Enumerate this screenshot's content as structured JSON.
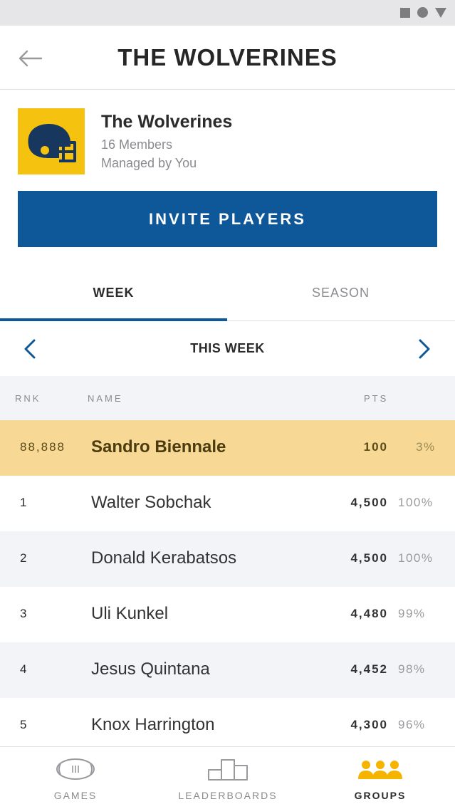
{
  "header": {
    "title": "THE WOLVERINES"
  },
  "group": {
    "name": "The Wolverines",
    "members": "16 Members",
    "manager": "Managed by You",
    "logo_color": "#F4C20F",
    "logo_icon": "football-helmet-icon"
  },
  "invite": {
    "label": "INVITE PLAYERS"
  },
  "tabs": [
    {
      "label": "WEEK",
      "selected": true
    },
    {
      "label": "SEASON",
      "selected": false
    }
  ],
  "period": {
    "label": "THIS WEEK"
  },
  "columns": {
    "rank": "RNK",
    "name": "NAME",
    "points": "PTS"
  },
  "current_user": {
    "rank": "88,888",
    "name": "Sandro Biennale",
    "points": "100",
    "percent": "3%"
  },
  "leaderboard": [
    {
      "rank": "1",
      "name": "Walter Sobchak",
      "points": "4,500",
      "percent": "100%"
    },
    {
      "rank": "2",
      "name": "Donald Kerabatsos",
      "points": "4,500",
      "percent": "100%"
    },
    {
      "rank": "3",
      "name": "Uli Kunkel",
      "points": "4,480",
      "percent": "99%"
    },
    {
      "rank": "4",
      "name": "Jesus Quintana",
      "points": "4,452",
      "percent": "98%"
    },
    {
      "rank": "5",
      "name": "Knox Harrington",
      "points": "4,300",
      "percent": "96%"
    }
  ],
  "bottom_nav": [
    {
      "label": "GAMES",
      "icon": "football-icon",
      "active": false
    },
    {
      "label": "LEADERBOARDS",
      "icon": "podium-icon",
      "active": false
    },
    {
      "label": "GROUPS",
      "icon": "people-group-icon",
      "active": true
    }
  ],
  "colors": {
    "accent": "#0E589A",
    "highlight_row": "#F7D995",
    "active_nav": "#F4B400"
  }
}
